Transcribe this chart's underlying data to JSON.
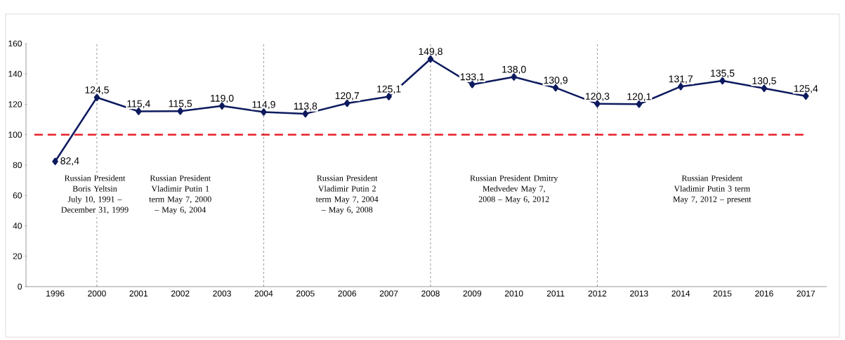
{
  "chart_data": {
    "type": "line",
    "categories": [
      "1996",
      "2000",
      "2001",
      "2002",
      "2003",
      "2004",
      "2005",
      "2006",
      "2007",
      "2008",
      "2009",
      "2010",
      "2011",
      "2012",
      "2013",
      "2014",
      "2015",
      "2016",
      "2017"
    ],
    "series": [
      {
        "color": "#0d1a5e",
        "values": [
          82.4,
          124.5,
          115.4,
          115.5,
          119.0,
          114.9,
          113.8,
          120.7,
          125.1,
          149.8,
          133.1,
          138.0,
          130.9,
          120.3,
          120.1,
          131.7,
          135.5,
          130.5,
          125.4
        ],
        "value_labels": [
          "82,4",
          "124,5",
          "115,4",
          "115,5",
          "119,0",
          "114,9",
          "113,8",
          "120,7",
          "125,1",
          "149,8",
          "133,1",
          "138,0",
          "130,9",
          "120,3",
          "120,1",
          "131,7",
          "135,5",
          "130,5",
          "125,4"
        ]
      }
    ],
    "ylim": [
      0,
      160
    ],
    "yticks": [
      0,
      20,
      40,
      60,
      80,
      100,
      120,
      140,
      160
    ],
    "grid": false,
    "marker": "diamond",
    "line_style": "solid",
    "ref_lines": [
      {
        "axis": "y",
        "value": 100,
        "color": "#e8202a",
        "line_style": "dashed"
      },
      {
        "axis": "x",
        "value": "2000",
        "color": "#000000",
        "line_style": "dashed"
      },
      {
        "axis": "x",
        "value": "2004",
        "color": "#000000",
        "line_style": "dashed"
      },
      {
        "axis": "x",
        "value": "2008",
        "color": "#000000",
        "line_style": "dashed"
      },
      {
        "axis": "x",
        "value": "2012",
        "color": "#000000",
        "line_style": "dashed"
      }
    ],
    "annotations": [
      "Russian President Boris Yeltsin July 10, 1991 – December 31, 1999",
      "Russian President Vladimir Putin 1 term May 7, 2000 – May 6, 2004",
      "Russian President Vladimir Putin 2 term May 7, 2004 – May 6, 2008",
      "Russian President Dmitry Medvedev May 7, 2008 – May 6, 2012",
      "Russian President Vladimir Putin 3 term May 7, 2012 – present"
    ]
  }
}
